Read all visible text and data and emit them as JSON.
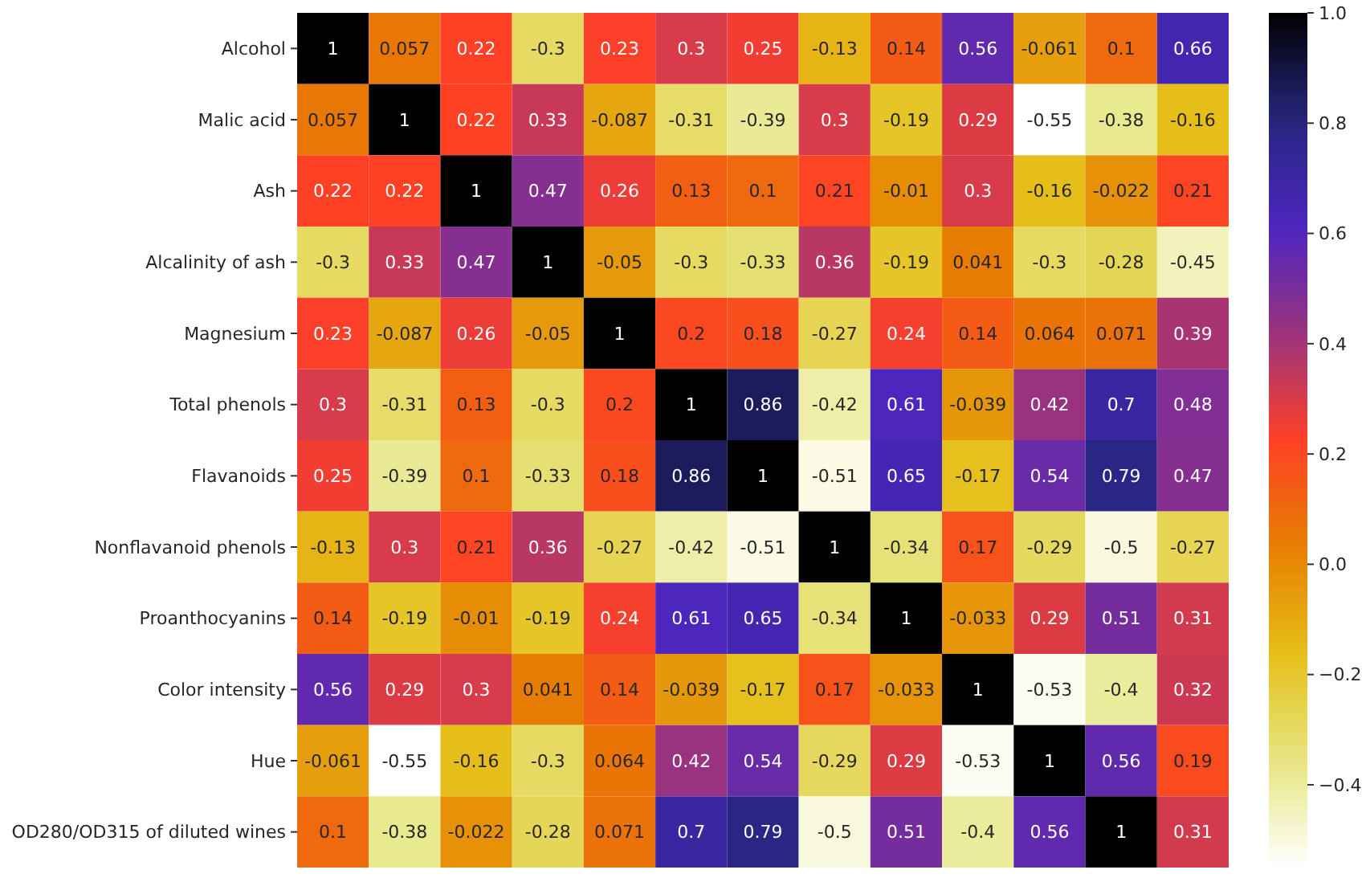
{
  "chart_data": {
    "type": "heatmap",
    "categories": [
      null,
      null,
      null,
      null,
      null,
      null,
      null,
      null,
      null,
      null,
      null,
      null,
      null
    ],
    "y_categories": [
      "Alcohol",
      "Malic acid",
      "Ash",
      "Alcalinity of ash",
      "Magnesium",
      "Total phenols",
      "Flavanoids",
      "Nonflavanoid phenols",
      "Proanthocyanins",
      "Color intensity",
      "Hue",
      "OD280/OD315 of diluted wines"
    ],
    "cells": [
      [
        1,
        0.057,
        0.22,
        -0.3,
        0.23,
        0.3,
        0.25,
        -0.13,
        0.14,
        0.56,
        -0.061,
        0.1,
        0.66
      ],
      [
        0.057,
        1,
        0.22,
        0.33,
        -0.087,
        -0.31,
        -0.39,
        0.3,
        -0.19,
        0.29,
        -0.55,
        -0.38,
        -0.16
      ],
      [
        0.22,
        0.22,
        1,
        0.47,
        0.26,
        0.13,
        0.1,
        0.21,
        -0.01,
        0.3,
        -0.16,
        -0.022,
        0.21
      ],
      [
        -0.3,
        0.33,
        0.47,
        1,
        -0.05,
        -0.3,
        -0.33,
        0.36,
        -0.19,
        0.041,
        -0.3,
        -0.28,
        -0.45
      ],
      [
        0.23,
        -0.087,
        0.26,
        -0.05,
        1,
        0.2,
        0.18,
        -0.27,
        0.24,
        0.14,
        0.064,
        0.071,
        0.39
      ],
      [
        0.3,
        -0.31,
        0.13,
        -0.3,
        0.2,
        1,
        0.86,
        -0.42,
        0.61,
        -0.039,
        0.42,
        0.7,
        0.48
      ],
      [
        0.25,
        -0.39,
        0.1,
        -0.33,
        0.18,
        0.86,
        1,
        -0.51,
        0.65,
        -0.17,
        0.54,
        0.79,
        0.47
      ],
      [
        -0.13,
        0.3,
        0.21,
        0.36,
        -0.27,
        -0.42,
        -0.51,
        1,
        -0.34,
        0.17,
        -0.29,
        -0.5,
        -0.27
      ],
      [
        0.14,
        -0.19,
        -0.01,
        -0.19,
        0.24,
        0.61,
        0.65,
        -0.34,
        1,
        -0.033,
        0.29,
        0.51,
        0.31
      ],
      [
        0.56,
        0.29,
        0.3,
        0.041,
        0.14,
        -0.039,
        -0.17,
        0.17,
        -0.033,
        1,
        -0.53,
        -0.4,
        0.32
      ],
      [
        -0.061,
        -0.55,
        -0.16,
        -0.3,
        0.064,
        0.42,
        0.54,
        -0.29,
        0.29,
        -0.53,
        1,
        0.56,
        0.19
      ],
      [
        0.1,
        -0.38,
        -0.022,
        -0.28,
        0.071,
        0.7,
        0.79,
        -0.5,
        0.51,
        -0.4,
        0.56,
        1,
        0.31
      ]
    ],
    "clim": [
      -0.55,
      1
    ],
    "cticks": [
      {
        "value": 1,
        "label": "1.0"
      },
      {
        "value": 0.8,
        "label": "0.8"
      },
      {
        "value": 0.6,
        "label": "0.6"
      },
      {
        "value": 0.4,
        "label": "0.4"
      },
      {
        "value": 0.2,
        "label": "0.2"
      },
      {
        "value": 0,
        "label": "0.0"
      },
      {
        "value": -0.2,
        "label": "−0.2"
      },
      {
        "value": -0.4,
        "label": "−0.4"
      }
    ],
    "data_labels": true,
    "tick_labels": "y"
  }
}
